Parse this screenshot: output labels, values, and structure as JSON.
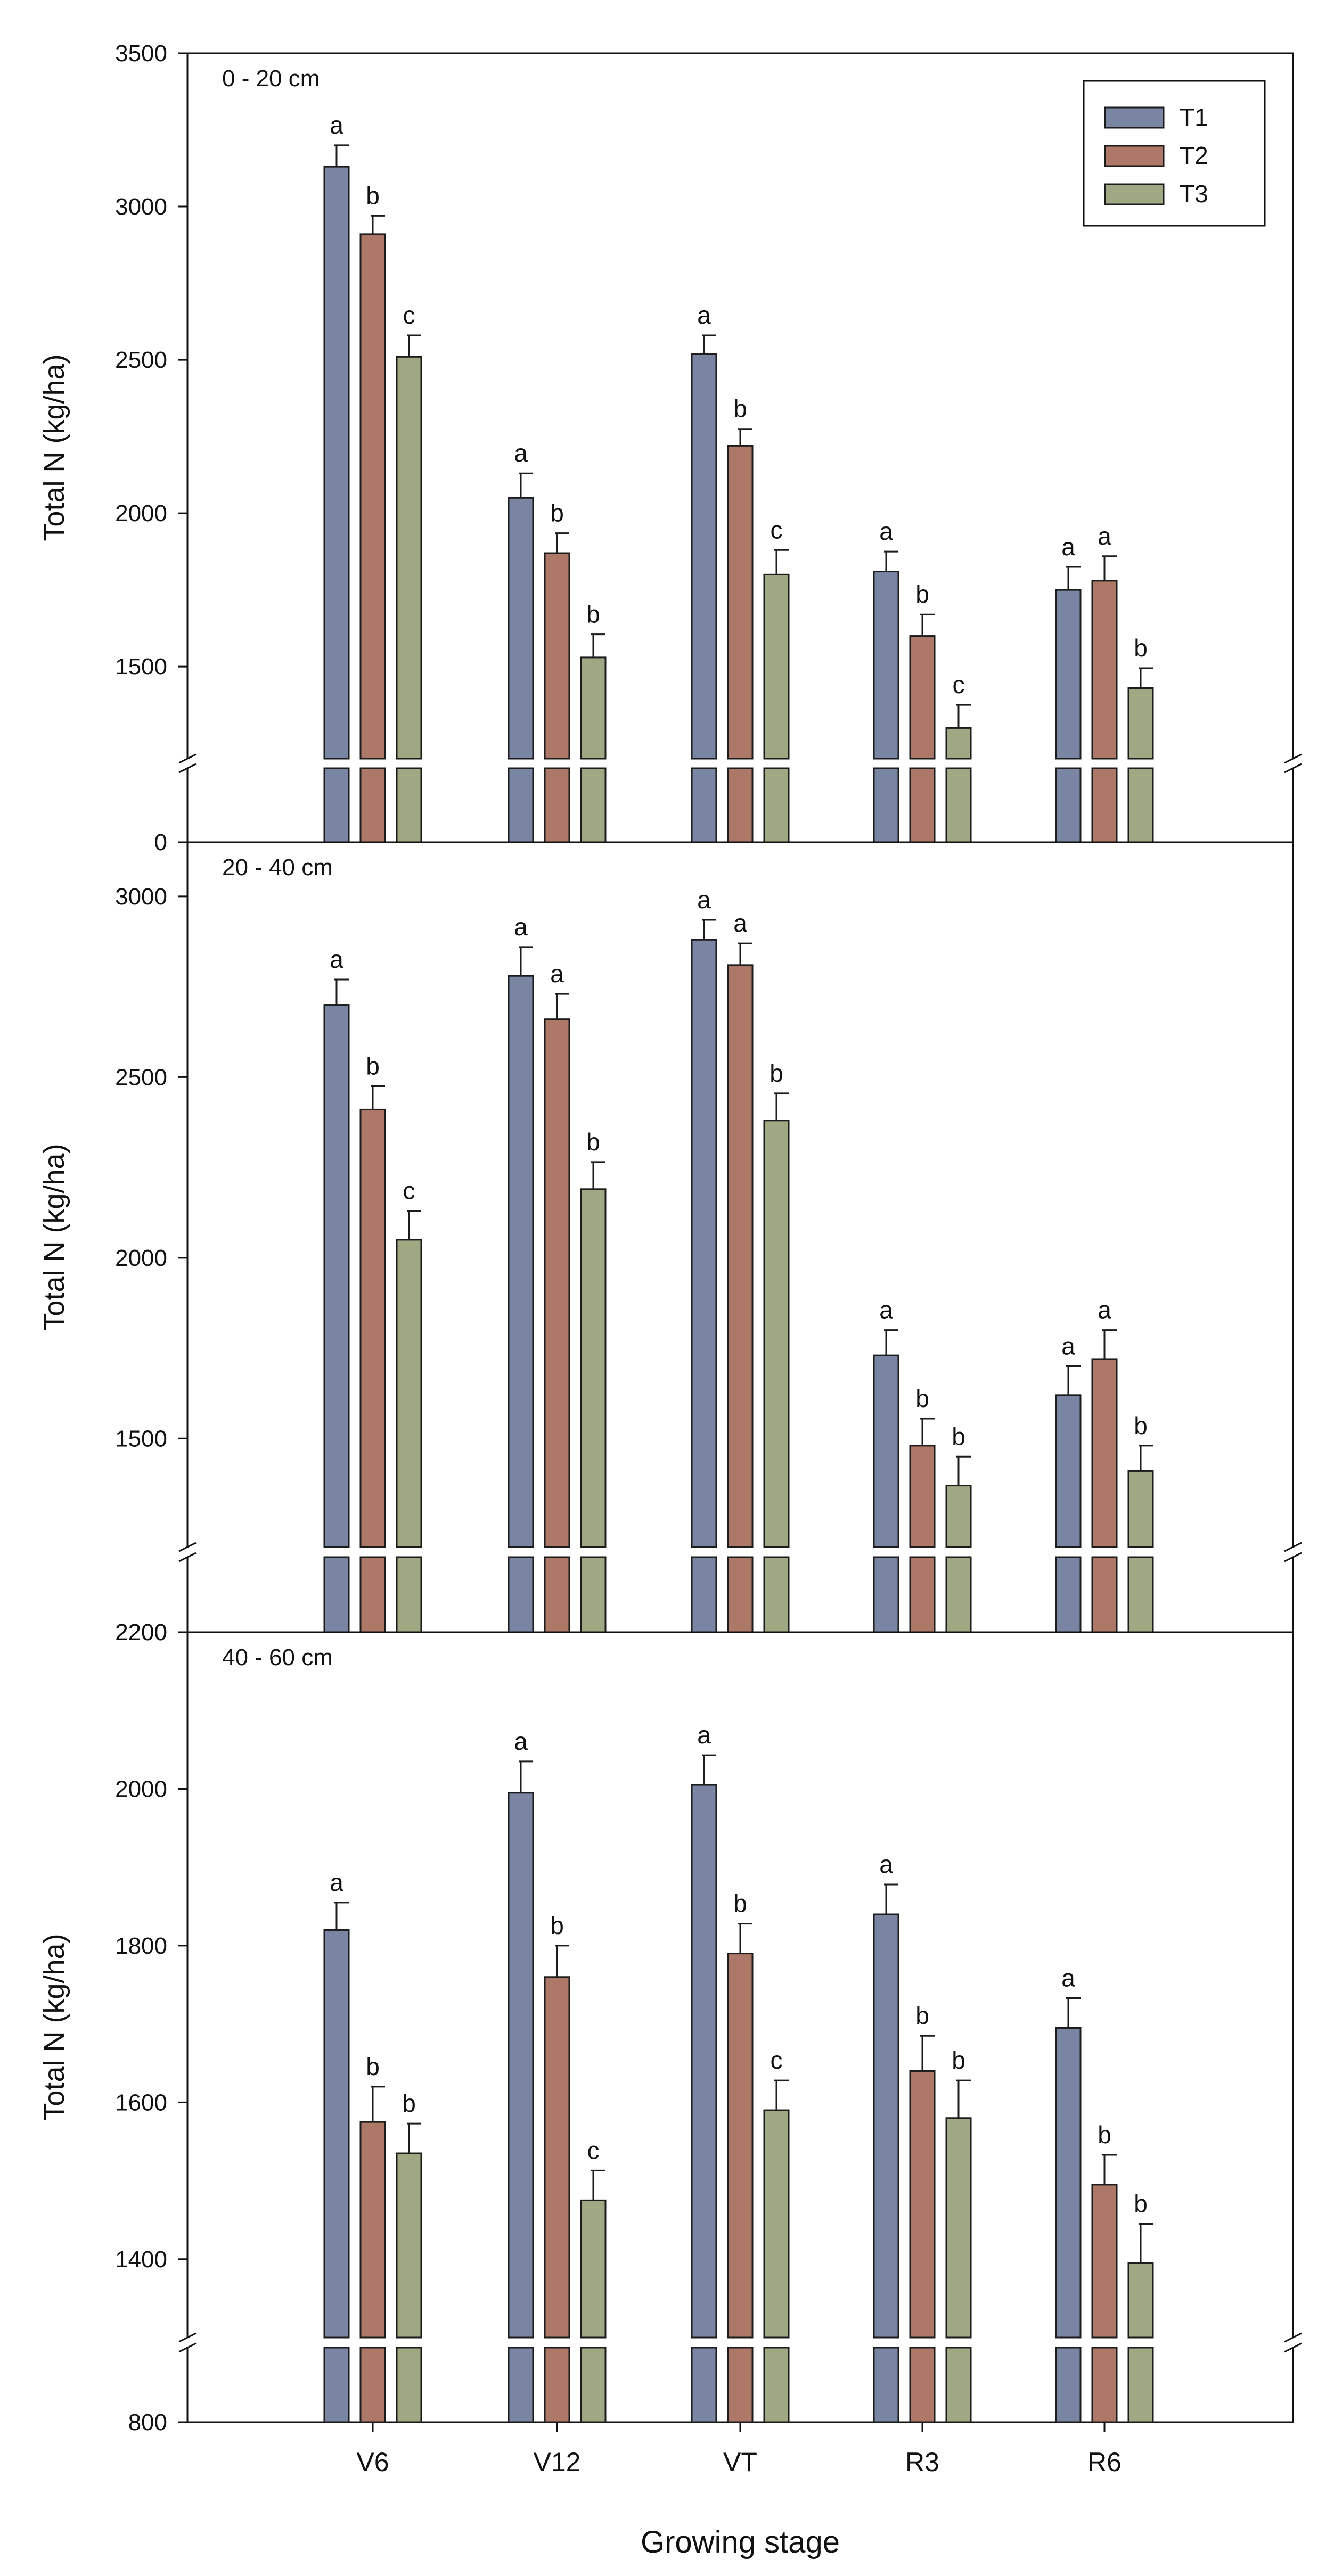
{
  "colors": {
    "T1": "#7a84a3",
    "T2": "#ad7868",
    "T3": "#9ea984"
  },
  "legend": {
    "position": "top-right",
    "entries": [
      "T1",
      "T2",
      "T3"
    ]
  },
  "figure": {
    "xlabel": "Growing stage"
  },
  "chart_data": [
    {
      "type": "bar",
      "title": "0 - 20 cm",
      "xlabel": "Growing stage",
      "ylabel": "Total N (kg/ha)",
      "categories": [
        "V6",
        "V12",
        "VT",
        "R3",
        "R6"
      ],
      "ylim": [
        1200,
        3500
      ],
      "axis_break": true,
      "bottom_tick_label": "0",
      "yticks": [
        1500,
        2000,
        2500,
        3000,
        3500
      ],
      "ytick_labels": [
        "1500",
        "2000",
        "2500",
        "3000",
        "3500"
      ],
      "series": [
        {
          "name": "T1",
          "values": [
            3130,
            2050,
            2520,
            1810,
            1750
          ],
          "errors": [
            70,
            80,
            60,
            65,
            75
          ],
          "letters": [
            "a",
            "a",
            "a",
            "a",
            "a"
          ]
        },
        {
          "name": "T2",
          "values": [
            2910,
            1870,
            2220,
            1600,
            1780
          ],
          "errors": [
            60,
            65,
            55,
            70,
            80
          ],
          "letters": [
            "b",
            "b",
            "b",
            "b",
            "a"
          ]
        },
        {
          "name": "T3",
          "values": [
            2510,
            1530,
            1800,
            1300,
            1430
          ],
          "errors": [
            70,
            75,
            80,
            75,
            65
          ],
          "letters": [
            "c",
            "b",
            "c",
            "c",
            "b"
          ]
        }
      ]
    },
    {
      "type": "bar",
      "title": "20 - 40 cm",
      "xlabel": "Growing stage",
      "ylabel": "Total N (kg/ha)",
      "categories": [
        "V6",
        "V12",
        "VT",
        "R3",
        "R6"
      ],
      "ylim": [
        1200,
        3150
      ],
      "axis_break": true,
      "bottom_tick_label": "2200",
      "yticks": [
        1500,
        2000,
        2500,
        3000
      ],
      "ytick_labels": [
        "1500",
        "2000",
        "2500",
        "3000"
      ],
      "series": [
        {
          "name": "T1",
          "values": [
            2700,
            2780,
            2880,
            1730,
            1620
          ],
          "errors": [
            70,
            80,
            55,
            70,
            80
          ],
          "letters": [
            "a",
            "a",
            "a",
            "a",
            "a"
          ]
        },
        {
          "name": "T2",
          "values": [
            2410,
            2660,
            2810,
            1480,
            1720
          ],
          "errors": [
            65,
            70,
            60,
            75,
            80
          ],
          "letters": [
            "b",
            "a",
            "a",
            "b",
            "a"
          ]
        },
        {
          "name": "T3",
          "values": [
            2050,
            2190,
            2380,
            1370,
            1410
          ],
          "errors": [
            80,
            75,
            75,
            80,
            70
          ],
          "letters": [
            "c",
            "b",
            "b",
            "b",
            "b"
          ]
        }
      ]
    },
    {
      "type": "bar",
      "title": "40 - 60 cm",
      "xlabel": "Growing stage",
      "ylabel": "Total N (kg/ha)",
      "categories": [
        "V6",
        "V12",
        "VT",
        "R3",
        "R6"
      ],
      "ylim": [
        1300,
        2200
      ],
      "axis_break": true,
      "bottom_tick_label": "800",
      "yticks": [
        1400,
        1600,
        1800,
        2000,
        2200
      ],
      "ytick_labels": [
        "1400",
        "1600",
        "1800",
        "2000",
        "2200"
      ],
      "series": [
        {
          "name": "T1",
          "values": [
            1820,
            1995,
            2005,
            1840,
            1695
          ],
          "errors": [
            35,
            40,
            38,
            38,
            38
          ],
          "letters": [
            "a",
            "a",
            "a",
            "a",
            "a"
          ]
        },
        {
          "name": "T2",
          "values": [
            1575,
            1760,
            1790,
            1640,
            1495
          ],
          "errors": [
            45,
            40,
            38,
            45,
            38
          ],
          "letters": [
            "b",
            "b",
            "b",
            "b",
            "b"
          ]
        },
        {
          "name": "T3",
          "values": [
            1535,
            1475,
            1590,
            1580,
            1395
          ],
          "errors": [
            38,
            38,
            38,
            48,
            50
          ],
          "letters": [
            "b",
            "c",
            "c",
            "b",
            "b"
          ]
        }
      ]
    }
  ]
}
